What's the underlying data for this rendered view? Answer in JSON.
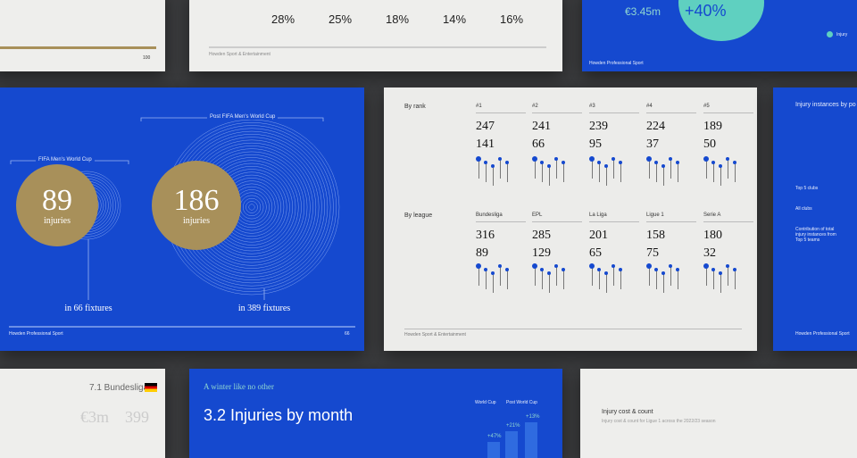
{
  "cards": {
    "top_left": {
      "page": "100"
    },
    "top_mid": {
      "stats": [
        "28%",
        "25%",
        "18%",
        "14%",
        "16%"
      ],
      "footer": "Howden Sport & Entertainment"
    },
    "top_right": {
      "amount": "€3.45m",
      "change": "+40%",
      "legend": "Injury",
      "footer": "Howden Professional Sport"
    },
    "world_cup": {
      "post_label": "Post FIFA Men's World Cup",
      "pre_label": "FIFA Men's World Cup",
      "pre_count": "89",
      "pre_unit": "injuries",
      "post_count": "186",
      "post_unit": "injuries",
      "pre_fixtures": "in 66 fixtures",
      "post_fixtures": "in 389 fixtures",
      "footer": "Howden Professional Sport",
      "page": "66"
    },
    "rankings": {
      "rank_title": "By rank",
      "ranks": [
        {
          "label": "#1",
          "a": "247",
          "b": "141"
        },
        {
          "label": "#2",
          "a": "241",
          "b": "66"
        },
        {
          "label": "#3",
          "a": "239",
          "b": "95"
        },
        {
          "label": "#4",
          "a": "224",
          "b": "37"
        },
        {
          "label": "#5",
          "a": "189",
          "b": "50"
        }
      ],
      "league_title": "By league",
      "leagues": [
        {
          "label": "Bundesliga",
          "a": "316",
          "b": "89"
        },
        {
          "label": "EPL",
          "a": "285",
          "b": "129"
        },
        {
          "label": "La Liga",
          "a": "201",
          "b": "65"
        },
        {
          "label": "Ligue 1",
          "a": "158",
          "b": "75"
        },
        {
          "label": "Serie A",
          "a": "180",
          "b": "32"
        }
      ],
      "footer": "Howden Sport & Entertainment"
    },
    "right": {
      "title": "Injury instances by po",
      "row1": "Top 5 clubs",
      "row2": "All clubs",
      "note": "Contribution of total injury instances from Top 5 teams",
      "footer": "Howden Professional Sport"
    },
    "bottom_left": {
      "title": "7.1 Bundesliga",
      "amount": "€3m",
      "count": "399"
    },
    "bottom_mid": {
      "kicker": "A winter like no other",
      "title": "3.2 Injuries by month",
      "wc": "World Cup",
      "post": "Post World Cup",
      "changes": [
        "+47%",
        "+21%",
        "+13%"
      ]
    },
    "bottom_right": {
      "title": "Injury cost & count",
      "subtitle": "Injury cost & count for Ligue 1 across the 2022/23 season"
    }
  }
}
